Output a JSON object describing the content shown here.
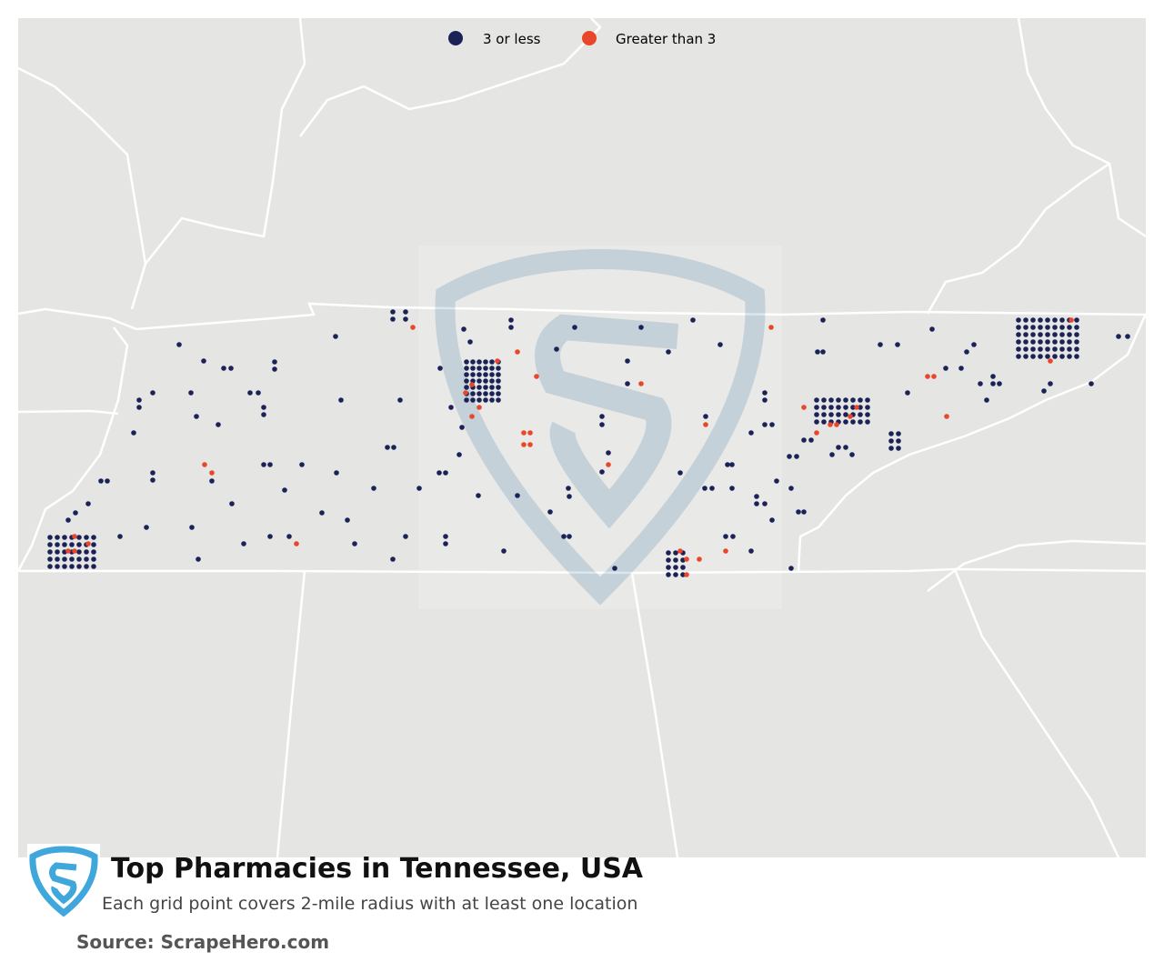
{
  "legend": [
    {
      "label": "3 or less",
      "color": "#1a2257"
    },
    {
      "label": "Greater than 3",
      "color": "#e8472a"
    }
  ],
  "footer": {
    "title": "Top Pharmacies in Tennessee, USA",
    "subtitle": "Each grid point covers 2-mile radius with at least one location",
    "source": "Source: ScrapeHero.com"
  }
}
